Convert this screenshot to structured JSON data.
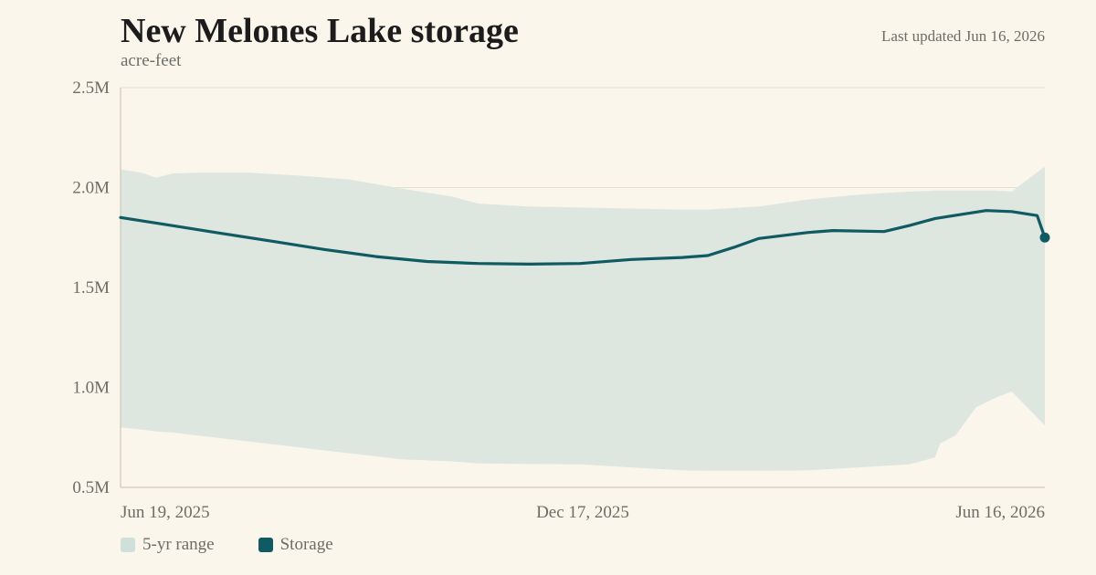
{
  "header": {
    "title": "New Melones Lake storage",
    "subtitle": "acre-feet",
    "updated": "Last updated Jun 16, 2026"
  },
  "legend": {
    "items": [
      {
        "label": "5-yr range",
        "color": "#cfe0da"
      },
      {
        "label": "Storage",
        "color": "#0f5a63"
      }
    ]
  },
  "chart_data": {
    "type": "area",
    "title": "New Melones Lake storage",
    "ylabel": "acre-feet",
    "xlabel": "",
    "x_start": "2025-06-19",
    "x_end": "2026-06-16",
    "ylim": [
      500000,
      2500000
    ],
    "yticks": [
      {
        "value": 500000,
        "label": "0.5M"
      },
      {
        "value": 1000000,
        "label": "1.0M"
      },
      {
        "value": 1500000,
        "label": "1.5M"
      },
      {
        "value": 2000000,
        "label": "2.0M"
      },
      {
        "value": 2500000,
        "label": "2.5M"
      }
    ],
    "xticks": [
      {
        "date": "2025-06-19",
        "label": "Jun 19, 2025"
      },
      {
        "date": "2025-12-17",
        "label": "Dec 17, 2025"
      },
      {
        "date": "2026-06-16",
        "label": "Jun 16, 2026"
      }
    ],
    "grid": true,
    "legend_position": "bottom-left",
    "series": [
      {
        "name": "5-yr range",
        "kind": "band",
        "color": "#dde7df",
        "points": [
          {
            "x": "2025-06-19",
            "low": 800000,
            "high": 2090000
          },
          {
            "x": "2025-06-27",
            "low": 790000,
            "high": 2075000
          },
          {
            "x": "2025-07-03",
            "low": 780000,
            "high": 2050000
          },
          {
            "x": "2025-07-09",
            "low": 775000,
            "high": 2070000
          },
          {
            "x": "2025-07-19",
            "low": 760000,
            "high": 2075000
          },
          {
            "x": "2025-08-08",
            "low": 730000,
            "high": 2075000
          },
          {
            "x": "2025-08-28",
            "low": 700000,
            "high": 2060000
          },
          {
            "x": "2025-09-17",
            "low": 670000,
            "high": 2040000
          },
          {
            "x": "2025-10-07",
            "low": 640000,
            "high": 1995000
          },
          {
            "x": "2025-10-27",
            "low": 630000,
            "high": 1955000
          },
          {
            "x": "2025-11-06",
            "low": 620000,
            "high": 1920000
          },
          {
            "x": "2025-11-26",
            "low": 617000,
            "high": 1905000
          },
          {
            "x": "2025-12-16",
            "low": 615000,
            "high": 1900000
          },
          {
            "x": "2026-01-05",
            "low": 600000,
            "high": 1895000
          },
          {
            "x": "2026-01-25",
            "low": 585000,
            "high": 1890000
          },
          {
            "x": "2026-02-04",
            "low": 583000,
            "high": 1890000
          },
          {
            "x": "2026-02-24",
            "low": 583000,
            "high": 1905000
          },
          {
            "x": "2026-03-15",
            "low": 585000,
            "high": 1940000
          },
          {
            "x": "2026-04-04",
            "low": 600000,
            "high": 1965000
          },
          {
            "x": "2026-04-24",
            "low": 615000,
            "high": 1980000
          },
          {
            "x": "2026-05-04",
            "low": 650000,
            "high": 1985000
          },
          {
            "x": "2026-05-06",
            "low": 720000,
            "high": 1985000
          },
          {
            "x": "2026-05-12",
            "low": 760000,
            "high": 1985000
          },
          {
            "x": "2026-05-16",
            "low": 830000,
            "high": 1985000
          },
          {
            "x": "2026-05-20",
            "low": 900000,
            "high": 1985000
          },
          {
            "x": "2026-05-28",
            "low": 950000,
            "high": 1985000
          },
          {
            "x": "2026-06-03",
            "low": 980000,
            "high": 1980000
          },
          {
            "x": "2026-06-16",
            "low": 810000,
            "high": 2105000
          }
        ]
      },
      {
        "name": "Storage",
        "kind": "line",
        "color": "#0f5a63",
        "points": [
          {
            "x": "2025-06-19",
            "y": 1850000
          },
          {
            "x": "2025-07-09",
            "y": 1810000
          },
          {
            "x": "2025-07-29",
            "y": 1770000
          },
          {
            "x": "2025-08-18",
            "y": 1730000
          },
          {
            "x": "2025-09-07",
            "y": 1690000
          },
          {
            "x": "2025-09-27",
            "y": 1655000
          },
          {
            "x": "2025-10-17",
            "y": 1630000
          },
          {
            "x": "2025-11-06",
            "y": 1620000
          },
          {
            "x": "2025-11-26",
            "y": 1617000
          },
          {
            "x": "2025-12-16",
            "y": 1620000
          },
          {
            "x": "2026-01-05",
            "y": 1640000
          },
          {
            "x": "2026-01-25",
            "y": 1650000
          },
          {
            "x": "2026-02-04",
            "y": 1660000
          },
          {
            "x": "2026-02-14",
            "y": 1700000
          },
          {
            "x": "2026-02-24",
            "y": 1745000
          },
          {
            "x": "2026-03-15",
            "y": 1775000
          },
          {
            "x": "2026-03-25",
            "y": 1785000
          },
          {
            "x": "2026-04-14",
            "y": 1780000
          },
          {
            "x": "2026-04-24",
            "y": 1810000
          },
          {
            "x": "2026-05-04",
            "y": 1845000
          },
          {
            "x": "2026-05-14",
            "y": 1865000
          },
          {
            "x": "2026-05-24",
            "y": 1885000
          },
          {
            "x": "2026-06-03",
            "y": 1880000
          },
          {
            "x": "2026-06-13",
            "y": 1860000
          },
          {
            "x": "2026-06-16",
            "y": 1750000
          }
        ]
      }
    ]
  }
}
